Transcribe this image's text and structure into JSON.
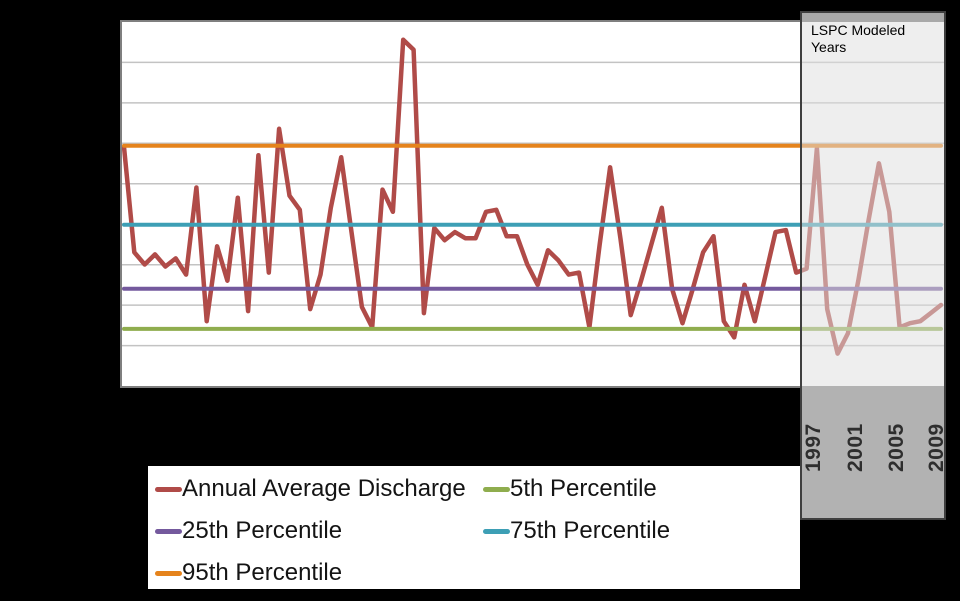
{
  "chart": {
    "panel_label": "LSPC Modeled Years",
    "x_tick_labels": [
      "1997",
      "2001",
      "2005",
      "2009"
    ]
  },
  "legend": {
    "items": [
      {
        "label": "Annual Average Discharge",
        "color": "#b04b48"
      },
      {
        "label": "5th Percentile",
        "color": "#8fad4e"
      },
      {
        "label": "25th Percentile",
        "color": "#74599d"
      },
      {
        "label": "75th Percentile",
        "color": "#3d9fb5"
      },
      {
        "label": "95th Percentile",
        "color": "#e5831c"
      }
    ]
  },
  "colors": {
    "background": "#000000",
    "plot_background": "#ffffff",
    "plot_border": "#7f7f7f",
    "gridline": "#c3c3c3",
    "panel_border": "#3f3f3f",
    "panel_fill": "#e9e9e9",
    "panel_year_band": "#b2b2b2"
  },
  "chart_data": {
    "type": "line",
    "title": "",
    "xlabel": "",
    "ylabel": "",
    "y_axis_note": "no visible y-axis labels; values expressed in gridline units (9 equal horizontal intervals, 0 = plot bottom)",
    "ylim": [
      0,
      9
    ],
    "grid": "horizontal gridlines only",
    "legend_position": "bottom, two columns, white box",
    "x_start_year": 1930,
    "x_end_year": 2009,
    "visible_x_ticks": [
      "1997",
      "2001",
      "2005",
      "2009"
    ],
    "annotation_panel": {
      "label": "LSPC Modeled Years",
      "covers_years": "approx 1996-2009"
    },
    "series": [
      {
        "name": "Annual Average Discharge",
        "color": "#b04b48",
        "values": [
          5.9,
          3.3,
          3.0,
          3.25,
          2.95,
          3.15,
          2.75,
          4.9,
          1.6,
          3.45,
          2.6,
          4.65,
          1.85,
          5.7,
          2.8,
          6.35,
          4.7,
          4.35,
          1.9,
          2.75,
          4.4,
          5.65,
          3.8,
          1.95,
          1.45,
          4.85,
          4.3,
          8.55,
          8.3,
          1.8,
          3.9,
          3.6,
          3.8,
          3.65,
          3.65,
          4.3,
          4.35,
          3.7,
          3.7,
          3.0,
          2.5,
          3.35,
          3.1,
          2.75,
          2.8,
          1.45,
          3.5,
          5.4,
          3.65,
          1.75,
          2.6,
          3.5,
          4.4,
          2.4,
          1.55,
          2.4,
          3.3,
          3.7,
          1.6,
          1.2,
          2.5,
          1.6,
          2.7,
          3.8,
          3.85,
          2.8,
          2.9,
          5.87,
          1.9,
          0.8,
          1.3,
          2.6,
          4.1,
          5.5,
          4.3,
          1.45,
          1.55,
          1.6,
          1.8,
          2.0
        ]
      },
      {
        "name": "5th Percentile",
        "color": "#8fad4e",
        "value": 1.41
      },
      {
        "name": "25th Percentile",
        "color": "#74599d",
        "value": 2.4
      },
      {
        "name": "75th Percentile",
        "color": "#3d9fb5",
        "value": 3.98
      },
      {
        "name": "95th Percentile",
        "color": "#e5831c",
        "value": 5.93
      }
    ]
  }
}
